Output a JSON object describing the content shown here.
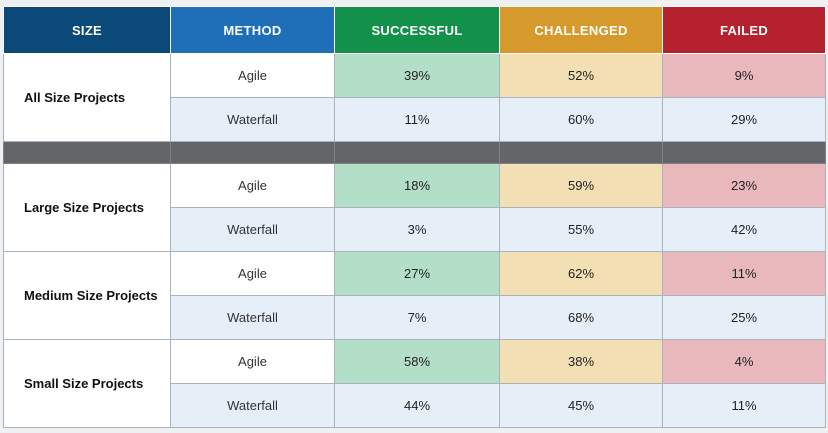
{
  "colors": {
    "size_header": "#0b4a78",
    "method_header": "#1f6fb8",
    "successful_header": "#13904a",
    "challenged_header": "#d69a2c",
    "failed_header": "#b5212e",
    "successful_cell": "#b3dec8",
    "challenged_cell": "#f3dfb4",
    "failed_cell": "#e8b8bd",
    "waterfall_row": "#e6eef8",
    "separator": "#636569"
  },
  "chart_data": {
    "type": "table",
    "columns": [
      "SIZE",
      "METHOD",
      "SUCCESSFUL",
      "CHALLENGED",
      "FAILED"
    ],
    "groups": [
      {
        "size": "All Size Projects",
        "rows": [
          {
            "method": "Agile",
            "successful": "39%",
            "challenged": "52%",
            "failed": "9%"
          },
          {
            "method": "Waterfall",
            "successful": "11%",
            "challenged": "60%",
            "failed": "29%"
          }
        ]
      },
      {
        "size": "Large Size Projects",
        "rows": [
          {
            "method": "Agile",
            "successful": "18%",
            "challenged": "59%",
            "failed": "23%"
          },
          {
            "method": "Waterfall",
            "successful": "3%",
            "challenged": "55%",
            "failed": "42%"
          }
        ]
      },
      {
        "size": "Medium Size Projects",
        "rows": [
          {
            "method": "Agile",
            "successful": "27%",
            "challenged": "62%",
            "failed": "11%"
          },
          {
            "method": "Waterfall",
            "successful": "7%",
            "challenged": "68%",
            "failed": "25%"
          }
        ]
      },
      {
        "size": "Small Size Projects",
        "rows": [
          {
            "method": "Agile",
            "successful": "58%",
            "challenged": "38%",
            "failed": "4%"
          },
          {
            "method": "Waterfall",
            "successful": "44%",
            "challenged": "45%",
            "failed": "11%"
          }
        ]
      }
    ]
  }
}
